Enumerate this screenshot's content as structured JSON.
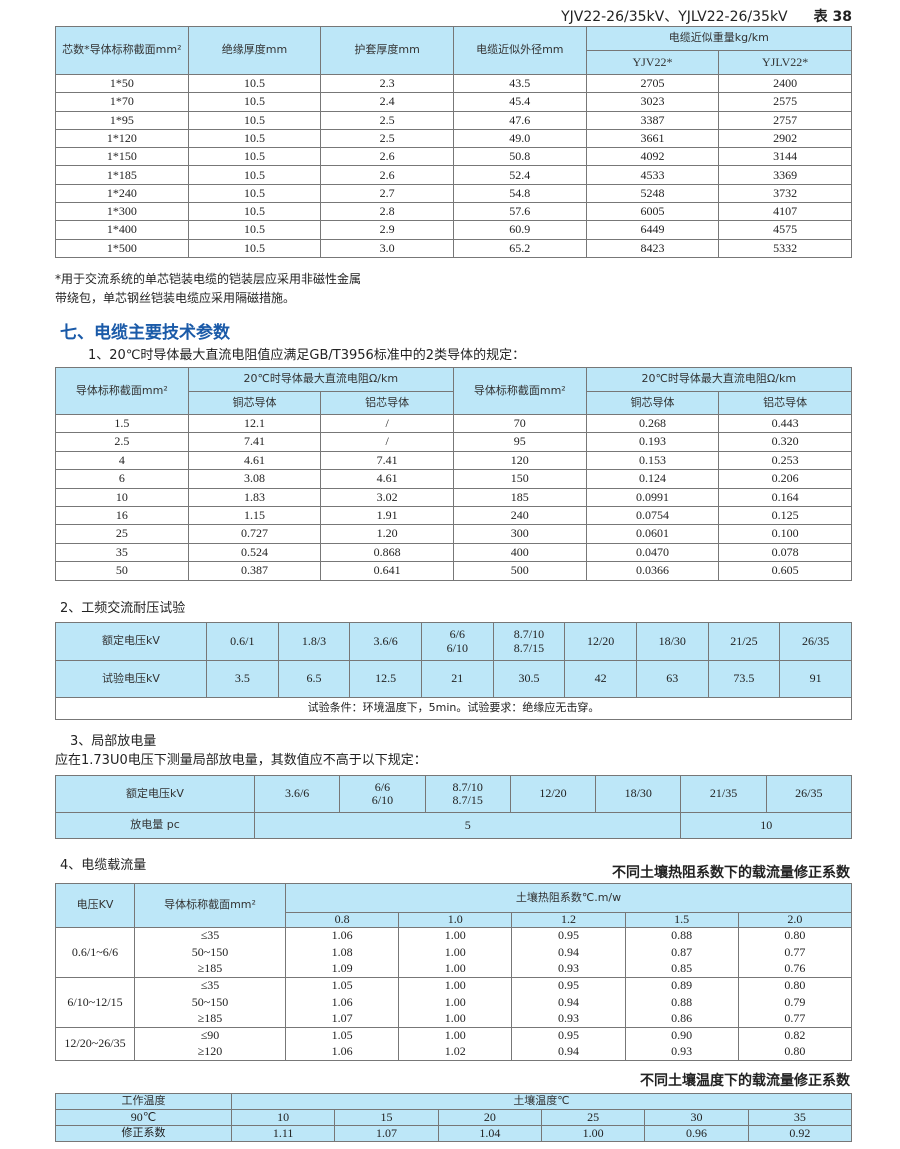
{
  "header": {
    "title": "YJV22-26/35kV、YJLV22-26/35kV",
    "table_no": "表 38"
  },
  "t1": {
    "h": [
      "芯数*导体标称截面mm²",
      "绝缘厚度mm",
      "护套厚度mm",
      "电缆近似外径mm",
      "电缆近似重量kg/km",
      "YJV22*",
      "YJLV22*"
    ],
    "rows": [
      [
        "1*50",
        "10.5",
        "2.3",
        "43.5",
        "2705",
        "2400"
      ],
      [
        "1*70",
        "10.5",
        "2.4",
        "45.4",
        "3023",
        "2575"
      ],
      [
        "1*95",
        "10.5",
        "2.5",
        "47.6",
        "3387",
        "2757"
      ],
      [
        "1*120",
        "10.5",
        "2.5",
        "49.0",
        "3661",
        "2902"
      ],
      [
        "1*150",
        "10.5",
        "2.6",
        "50.8",
        "4092",
        "3144"
      ],
      [
        "1*185",
        "10.5",
        "2.6",
        "52.4",
        "4533",
        "3369"
      ],
      [
        "1*240",
        "10.5",
        "2.7",
        "54.8",
        "5248",
        "3732"
      ],
      [
        "1*300",
        "10.5",
        "2.8",
        "57.6",
        "6005",
        "4107"
      ],
      [
        "1*400",
        "10.5",
        "2.9",
        "60.9",
        "6449",
        "4575"
      ],
      [
        "1*500",
        "10.5",
        "3.0",
        "65.2",
        "8423",
        "5332"
      ]
    ]
  },
  "notes": [
    "*用于交流系统的单芯铠装电缆的铠装层应采用非磁性金属",
    "带绕包，单芯钢丝铠装电缆应采用隔磁措施。"
  ],
  "section": "七、电缆主要技术参数",
  "s1": "1、20℃时导体最大直流电阻值应满足GB/T3956标准中的2类导体的规定：",
  "t2": {
    "h": [
      "导体标称截面mm²",
      "20℃时导体最大直流电阻Ω/km",
      "铜芯导体",
      "铝芯导体"
    ],
    "rows": [
      [
        "1.5",
        "12.1",
        "/",
        "70",
        "0.268",
        "0.443"
      ],
      [
        "2.5",
        "7.41",
        "/",
        "95",
        "0.193",
        "0.320"
      ],
      [
        "4",
        "4.61",
        "7.41",
        "120",
        "0.153",
        "0.253"
      ],
      [
        "6",
        "3.08",
        "4.61",
        "150",
        "0.124",
        "0.206"
      ],
      [
        "10",
        "1.83",
        "3.02",
        "185",
        "0.0991",
        "0.164"
      ],
      [
        "16",
        "1.15",
        "1.91",
        "240",
        "0.0754",
        "0.125"
      ],
      [
        "25",
        "0.727",
        "1.20",
        "300",
        "0.0601",
        "0.100"
      ],
      [
        "35",
        "0.524",
        "0.868",
        "400",
        "0.0470",
        "0.078"
      ],
      [
        "50",
        "0.387",
        "0.641",
        "500",
        "0.0366",
        "0.605"
      ]
    ]
  },
  "s2": "2、工频交流耐压试验",
  "t3": {
    "r1": [
      "额定电压kV",
      "0.6/1",
      "1.8/3",
      "3.6/6",
      "6/6\n6/10",
      "8.7/10\n8.7/15",
      "12/20",
      "18/30",
      "21/25",
      "26/35"
    ],
    "r2": [
      "试验电压kV",
      "3.5",
      "6.5",
      "12.5",
      "21",
      "30.5",
      "42",
      "63",
      "73.5",
      "91"
    ],
    "cond": "试验条件：环境温度下，5min。试验要求：绝缘应无击穿。"
  },
  "s3": "3、局部放电量",
  "s3b": "应在1.73U0电压下测量局部放电量，其数值应不高于以下规定：",
  "t4": {
    "r1": [
      "额定电压kV",
      "3.6/6",
      "6/6\n6/10",
      "8.7/10\n8.7/15",
      "12/20",
      "18/30",
      "21/35",
      "26/35"
    ],
    "r2": [
      "放电量 pc",
      "5",
      "10"
    ]
  },
  "s4": "4、电缆载流量",
  "t5title": "不同土壤热阻系数下的载流量修正系数",
  "t5": {
    "h": [
      "电压KV",
      "导体标称截面mm²",
      "土壤热阻系数℃.m/w"
    ],
    "cols": [
      "0.8",
      "1.0",
      "1.2",
      "1.5",
      "2.0"
    ],
    "groups": [
      {
        "v": "0.6/1~6/6",
        "rows": [
          [
            "≤35",
            "1.06",
            "1.00",
            "0.95",
            "0.88",
            "0.80"
          ],
          [
            "50~150",
            "1.08",
            "1.00",
            "0.94",
            "0.87",
            "0.77"
          ],
          [
            "≥185",
            "1.09",
            "1.00",
            "0.93",
            "0.85",
            "0.76"
          ]
        ]
      },
      {
        "v": "6/10~12/15",
        "rows": [
          [
            "≤35",
            "1.05",
            "1.00",
            "0.95",
            "0.89",
            "0.80"
          ],
          [
            "50~150",
            "1.06",
            "1.00",
            "0.94",
            "0.88",
            "0.79"
          ],
          [
            "≥185",
            "1.07",
            "1.00",
            "0.93",
            "0.86",
            "0.77"
          ]
        ]
      },
      {
        "v": "12/20~26/35",
        "rows": [
          [
            "≤90",
            "1.05",
            "1.00",
            "0.95",
            "0.90",
            "0.82"
          ],
          [
            "≥120",
            "1.06",
            "1.02",
            "0.94",
            "0.93",
            "0.80"
          ]
        ]
      }
    ]
  },
  "t6title": "不同土壤温度下的载流量修正系数",
  "t6": {
    "h": [
      "工作温度",
      "土壤温度℃"
    ],
    "r2": [
      "90℃",
      "10",
      "15",
      "20",
      "25",
      "30",
      "35"
    ],
    "r3": [
      "修正系数",
      "1.11",
      "1.07",
      "1.04",
      "1.00",
      "0.96",
      "0.92"
    ]
  },
  "colors": {
    "header_bg": "#bde7f8",
    "section": "#1a5aa8"
  }
}
